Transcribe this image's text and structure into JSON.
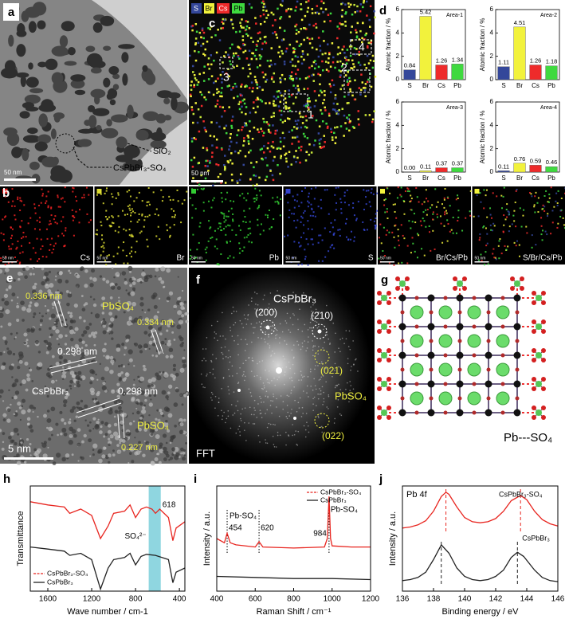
{
  "image_panels": {
    "a": {
      "label": "a",
      "sio2": "SiO₂",
      "particle": "CsPbBr₃-SO₄",
      "scale": "50 nm"
    },
    "c": {
      "label": "c",
      "legend": [
        "S",
        "Br",
        "Cs",
        "Pb"
      ],
      "areas": [
        "1",
        "2",
        "3",
        "4"
      ],
      "scale": "50 nm"
    },
    "d": {
      "label": "d"
    },
    "b": {
      "label": "b",
      "maps": [
        "Cs",
        "Br",
        "Pb",
        "S",
        "Br/Cs/Pb",
        "S/Br/Cs/Pb"
      ],
      "scale": "50 nm"
    },
    "e": {
      "label": "e",
      "d1": "0.336 nm",
      "phase1": "PbSO₄",
      "d2": "0.334 nm",
      "d3": "0.298 nm",
      "phase2": "CsPbBr₃",
      "d4": "0.298 nm",
      "phase3": "PbSO₄",
      "d5": "0.227 nm",
      "scale": "5 nm"
    },
    "f": {
      "label": "f",
      "phase1": "CsPbBr₃",
      "s1": "(200)",
      "s2": "(210)",
      "s3": "(021)",
      "phase2": "PbSO₄",
      "s4": "(022)",
      "caption": "FFT"
    },
    "g": {
      "label": "g",
      "caption": "Pb---SO₄"
    },
    "h": {
      "label": "h"
    },
    "i": {
      "label": "i"
    },
    "j": {
      "label": "j"
    }
  },
  "chart_data": [
    {
      "type": "bar",
      "title": "Area-1",
      "ylabel": "Atomic fraction / %",
      "categories": [
        "S",
        "Br",
        "Cs",
        "Pb"
      ],
      "colors": [
        "#34479a",
        "#f2f23c",
        "#ee2b2b",
        "#3fd93f"
      ],
      "values": [
        0.84,
        5.42,
        1.26,
        1.34
      ],
      "value_labels": [
        "0.84",
        "5.42",
        "1.26",
        "1.34"
      ],
      "ylim": [
        0,
        6
      ],
      "yticks": [
        0,
        2,
        4,
        6
      ]
    },
    {
      "type": "bar",
      "title": "Area-2",
      "ylabel": "Atomic fraction / %",
      "categories": [
        "S",
        "Br",
        "Cs",
        "Pb"
      ],
      "colors": [
        "#34479a",
        "#f2f23c",
        "#ee2b2b",
        "#3fd93f"
      ],
      "values": [
        1.11,
        4.51,
        1.26,
        1.18
      ],
      "value_labels": [
        "1.11",
        "4.51",
        "1.26",
        "1.18"
      ],
      "ylim": [
        0,
        6
      ],
      "yticks": [
        0,
        2,
        4,
        6
      ]
    },
    {
      "type": "bar",
      "title": "Area-3",
      "ylabel": "Atomic fraction / %",
      "categories": [
        "S",
        "Br",
        "Cs",
        "Pb"
      ],
      "colors": [
        "#34479a",
        "#f2f23c",
        "#ee2b2b",
        "#3fd93f"
      ],
      "values": [
        0,
        0.11,
        0.37,
        0.37
      ],
      "value_labels": [
        "0.00",
        "0.11",
        "0.37",
        "0.37"
      ],
      "ylim": [
        0,
        6
      ],
      "yticks": [
        0,
        2,
        4,
        6
      ]
    },
    {
      "type": "bar",
      "title": "Area-4",
      "ylabel": "Atomic fraction / %",
      "categories": [
        "S",
        "Br",
        "Cs",
        "Pb"
      ],
      "colors": [
        "#34479a",
        "#f2f23c",
        "#ee2b2b",
        "#3fd93f"
      ],
      "values": [
        0.11,
        0.76,
        0.59,
        0.46
      ],
      "value_labels": [
        "0.11",
        "0.76",
        "0.59",
        "0.46"
      ],
      "ylim": [
        0,
        6
      ],
      "yticks": [
        0,
        2,
        4,
        6
      ]
    },
    {
      "type": "line",
      "xlabel": "Wave number / cm-1",
      "ylabel": "Transmittance",
      "xlim": [
        1760,
        350
      ],
      "xticks": [
        1600,
        1200,
        800,
        400
      ],
      "ylim": [
        0,
        1
      ],
      "band": [
        680,
        570
      ],
      "band_label": "SO₄²⁻",
      "band_value": 618,
      "legend": "lower left",
      "series": [
        {
          "name": "CsPbBr₃-SO₄",
          "color": "#e8251f",
          "x": [
            1760,
            1600,
            1450,
            1400,
            1300,
            1200,
            1120,
            1050,
            1000,
            900,
            850,
            800,
            750,
            700,
            650,
            618,
            580,
            500,
            460,
            430,
            350
          ],
          "values": [
            0.85,
            0.82,
            0.8,
            0.74,
            0.78,
            0.72,
            0.5,
            0.62,
            0.74,
            0.76,
            0.82,
            0.7,
            0.78,
            0.8,
            0.78,
            0.74,
            0.78,
            0.7,
            0.48,
            0.6,
            0.66
          ]
        },
        {
          "name": "CsPbBr₃",
          "color": "#222222",
          "x": [
            1760,
            1600,
            1450,
            1400,
            1300,
            1200,
            1120,
            1050,
            1000,
            900,
            850,
            800,
            750,
            700,
            618,
            500,
            460,
            430,
            350
          ],
          "values": [
            0.42,
            0.4,
            0.38,
            0.34,
            0.36,
            0.3,
            0.02,
            0.22,
            0.3,
            0.32,
            0.36,
            0.25,
            0.33,
            0.35,
            0.34,
            0.3,
            0.08,
            0.18,
            0.22
          ]
        }
      ]
    },
    {
      "type": "line",
      "xlabel": "Raman Shift / cm⁻¹",
      "ylabel": "Intensity / a.u.",
      "xlim": [
        400,
        1200
      ],
      "xticks": [
        400,
        600,
        800,
        1000,
        1200
      ],
      "ylim": [
        0,
        1
      ],
      "peaks": [
        454,
        620,
        984
      ],
      "peak_names": [
        "Pb-SO₄",
        "Pb-SO₄"
      ],
      "legend": "upper right",
      "series": [
        {
          "name": "CsPbBr₃-SO₄",
          "color": "#e8251f",
          "x": [
            400,
            440,
            454,
            470,
            500,
            600,
            620,
            640,
            800,
            960,
            975,
            984,
            992,
            1000,
            1100,
            1200
          ],
          "values": [
            0.5,
            0.46,
            0.55,
            0.46,
            0.44,
            0.42,
            0.47,
            0.42,
            0.41,
            0.42,
            0.5,
            0.9,
            0.5,
            0.43,
            0.42,
            0.42
          ]
        },
        {
          "name": "CsPbBr₃",
          "color": "#222222",
          "x": [
            400,
            600,
            800,
            1000,
            1200
          ],
          "values": [
            0.14,
            0.13,
            0.12,
            0.12,
            0.11
          ]
        }
      ]
    },
    {
      "type": "line",
      "title_text": "Pb 4f",
      "xlabel": "Binding energy / eV",
      "ylabel": "Intensity / a.u.",
      "xlim": [
        136,
        146
      ],
      "xticks": [
        136,
        138,
        140,
        142,
        144,
        146
      ],
      "ylim": [
        0,
        1
      ],
      "legend": "inline",
      "series": [
        {
          "name": "CsPbBr₃-SO₄",
          "color": "#e8251f",
          "peaks": [
            138.8,
            143.6
          ],
          "x": [
            136,
            136.5,
            137,
            137.5,
            138,
            138.5,
            138.8,
            139,
            139.5,
            140,
            140.5,
            141,
            141.5,
            142,
            142.5,
            143,
            143.6,
            144,
            144.5,
            145,
            145.5,
            146
          ],
          "values": [
            0.6,
            0.61,
            0.63,
            0.67,
            0.76,
            0.9,
            0.94,
            0.92,
            0.8,
            0.7,
            0.66,
            0.65,
            0.66,
            0.69,
            0.76,
            0.86,
            0.91,
            0.87,
            0.76,
            0.68,
            0.64,
            0.62
          ]
        },
        {
          "name": "CsPbBr₃",
          "color": "#222222",
          "peaks": [
            138.5,
            143.4
          ],
          "x": [
            136,
            136.5,
            137,
            137.5,
            138,
            138.5,
            139,
            139.5,
            140,
            140.5,
            141,
            141.5,
            142,
            142.5,
            143,
            143.4,
            143.8,
            144.5,
            145,
            145.5,
            146
          ],
          "values": [
            0.1,
            0.11,
            0.13,
            0.18,
            0.3,
            0.44,
            0.36,
            0.22,
            0.14,
            0.11,
            0.1,
            0.11,
            0.14,
            0.2,
            0.32,
            0.37,
            0.33,
            0.2,
            0.13,
            0.1,
            0.09
          ]
        }
      ]
    }
  ]
}
